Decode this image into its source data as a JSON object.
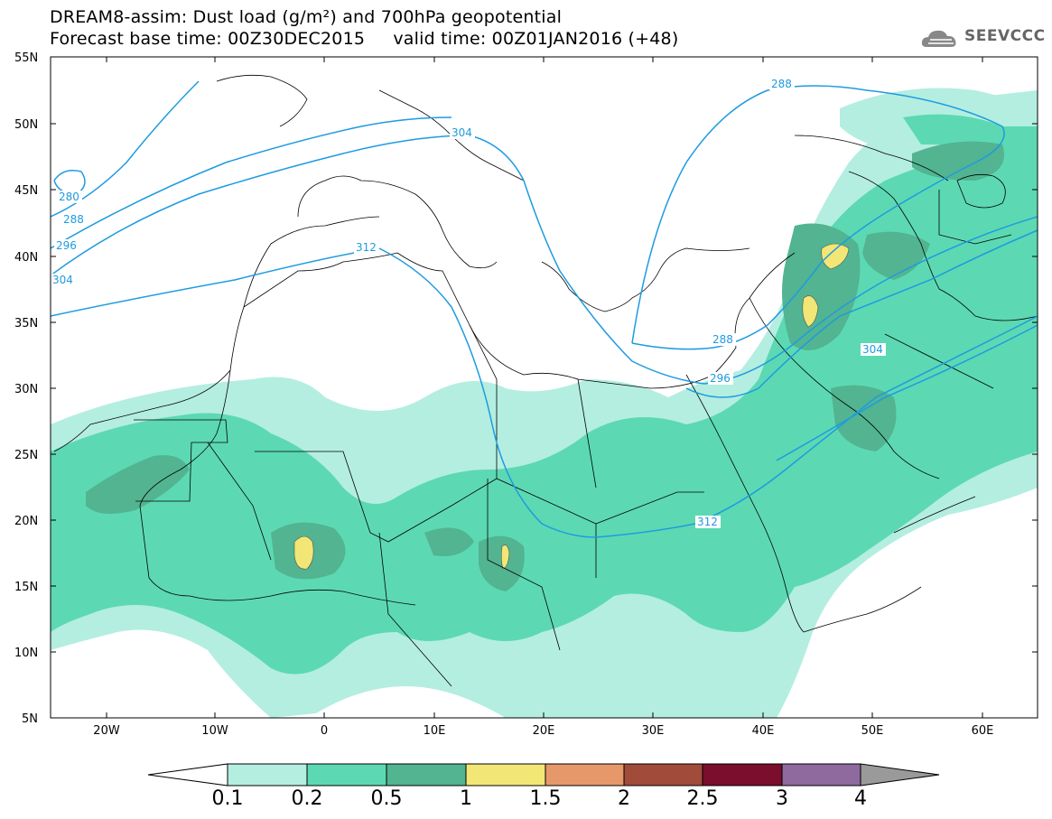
{
  "header": {
    "line1": "DREAM8-assim: Dust load (g/m²) and 700hPa geopotential",
    "line2": "Forecast base time: 00Z30DEC2015     valid time: 00Z01JAN2016 (+48)",
    "logo_text": "SEEVCCC"
  },
  "map": {
    "lat_labels": [
      "55N",
      "50N",
      "45N",
      "40N",
      "35N",
      "30N",
      "25N",
      "20N",
      "15N",
      "10N",
      "5N"
    ],
    "lon_labels": [
      "20W",
      "10W",
      "0",
      "10E",
      "20E",
      "30E",
      "40E",
      "50E",
      "60E"
    ],
    "contour_labels": [
      "288",
      "304",
      "280",
      "288",
      "296",
      "304",
      "312",
      "288",
      "296",
      "304",
      "312"
    ],
    "dust_colors": [
      "#b4eee0",
      "#5cd9b2",
      "#52b491",
      "#f2e676",
      "#e6986b",
      "#a14b3b",
      "#7a0e2c",
      "#8e6a9e",
      "#9a9a9a"
    ],
    "contour_color": "#1e9be0"
  },
  "colorbar": {
    "ticks": [
      "0.1",
      "0.2",
      "0.5",
      "1",
      "1.5",
      "2",
      "2.5",
      "3",
      "4"
    ],
    "colors": [
      "#b4eee0",
      "#5cd9b2",
      "#52b491",
      "#f2e676",
      "#e6986b",
      "#a14b3b",
      "#7a0e2c",
      "#8e6a9e",
      "#9a9a9a"
    ]
  }
}
